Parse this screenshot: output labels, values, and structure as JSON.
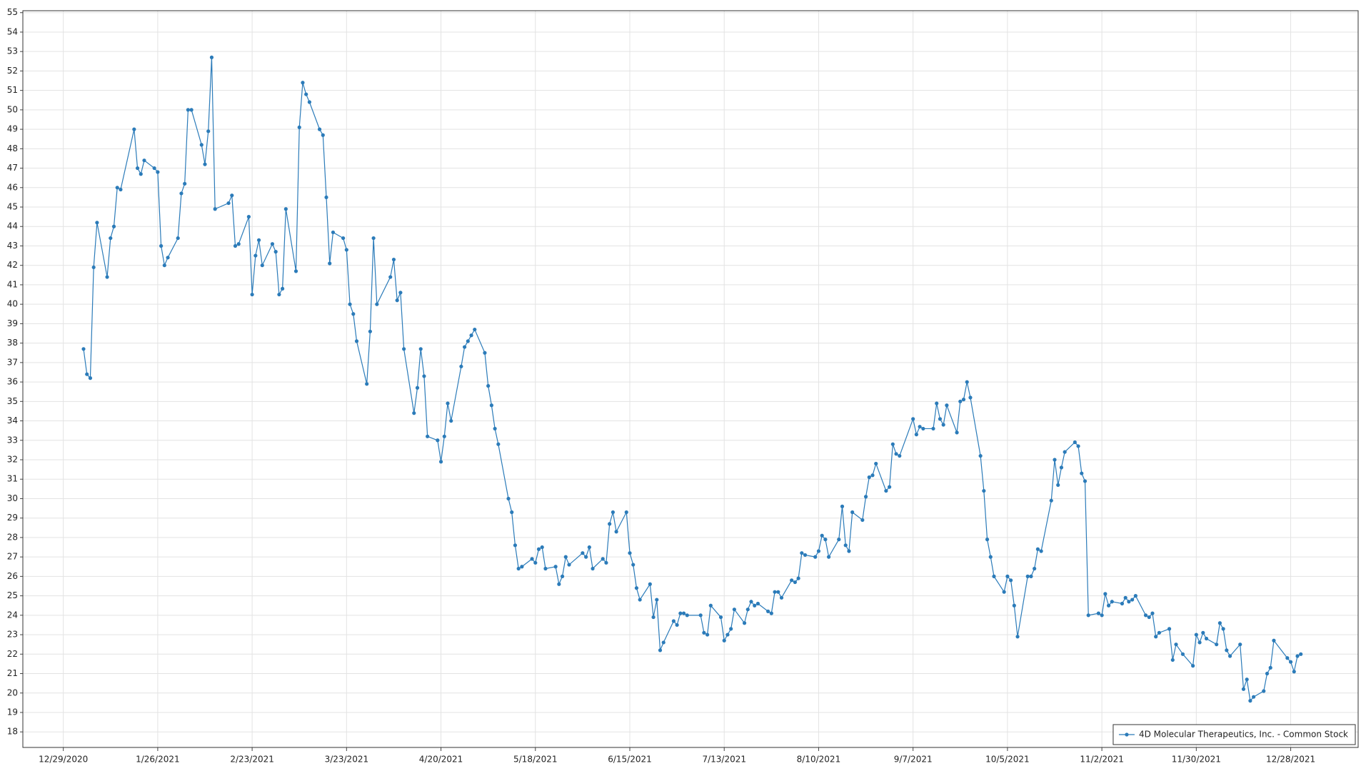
{
  "chart_data": {
    "type": "line",
    "x": [
      "1/4/2021",
      "1/5/2021",
      "1/6/2021",
      "1/7/2021",
      "1/8/2021",
      "1/11/2021",
      "1/12/2021",
      "1/13/2021",
      "1/14/2021",
      "1/15/2021",
      "1/19/2021",
      "1/20/2021",
      "1/21/2021",
      "1/22/2021",
      "1/25/2021",
      "1/26/2021",
      "1/27/2021",
      "1/28/2021",
      "1/29/2021",
      "2/1/2021",
      "2/2/2021",
      "2/3/2021",
      "2/4/2021",
      "2/5/2021",
      "2/8/2021",
      "2/9/2021",
      "2/10/2021",
      "2/11/2021",
      "2/12/2021",
      "2/16/2021",
      "2/17/2021",
      "2/18/2021",
      "2/19/2021",
      "2/22/2021",
      "2/23/2021",
      "2/24/2021",
      "2/25/2021",
      "2/26/2021",
      "3/1/2021",
      "3/2/2021",
      "3/3/2021",
      "3/4/2021",
      "3/5/2021",
      "3/8/2021",
      "3/9/2021",
      "3/10/2021",
      "3/11/2021",
      "3/12/2021",
      "3/15/2021",
      "3/16/2021",
      "3/17/2021",
      "3/18/2021",
      "3/19/2021",
      "3/22/2021",
      "3/23/2021",
      "3/24/2021",
      "3/25/2021",
      "3/26/2021",
      "3/29/2021",
      "3/30/2021",
      "3/31/2021",
      "4/1/2021",
      "4/5/2021",
      "4/6/2021",
      "4/7/2021",
      "4/8/2021",
      "4/9/2021",
      "4/12/2021",
      "4/13/2021",
      "4/14/2021",
      "4/15/2021",
      "4/16/2021",
      "4/19/2021",
      "4/20/2021",
      "4/21/2021",
      "4/22/2021",
      "4/23/2021",
      "4/26/2021",
      "4/27/2021",
      "4/28/2021",
      "4/29/2021",
      "4/30/2021",
      "5/3/2021",
      "5/4/2021",
      "5/5/2021",
      "5/6/2021",
      "5/7/2021",
      "5/10/2021",
      "5/11/2021",
      "5/12/2021",
      "5/13/2021",
      "5/14/2021",
      "5/17/2021",
      "5/18/2021",
      "5/19/2021",
      "5/20/2021",
      "5/21/2021",
      "5/24/2021",
      "5/25/2021",
      "5/26/2021",
      "5/27/2021",
      "5/28/2021",
      "6/1/2021",
      "6/2/2021",
      "6/3/2021",
      "6/4/2021",
      "6/7/2021",
      "6/8/2021",
      "6/9/2021",
      "6/10/2021",
      "6/11/2021",
      "6/14/2021",
      "6/15/2021",
      "6/16/2021",
      "6/17/2021",
      "6/18/2021",
      "6/21/2021",
      "6/22/2021",
      "6/23/2021",
      "6/24/2021",
      "6/25/2021",
      "6/28/2021",
      "6/29/2021",
      "6/30/2021",
      "7/1/2021",
      "7/2/2021",
      "7/6/2021",
      "7/7/2021",
      "7/8/2021",
      "7/9/2021",
      "7/12/2021",
      "7/13/2021",
      "7/14/2021",
      "7/15/2021",
      "7/16/2021",
      "7/19/2021",
      "7/20/2021",
      "7/21/2021",
      "7/22/2021",
      "7/23/2021",
      "7/26/2021",
      "7/27/2021",
      "7/28/2021",
      "7/29/2021",
      "7/30/2021",
      "8/2/2021",
      "8/3/2021",
      "8/4/2021",
      "8/5/2021",
      "8/6/2021",
      "8/9/2021",
      "8/10/2021",
      "8/11/2021",
      "8/12/2021",
      "8/13/2021",
      "8/16/2021",
      "8/17/2021",
      "8/18/2021",
      "8/19/2021",
      "8/20/2021",
      "8/23/2021",
      "8/24/2021",
      "8/25/2021",
      "8/26/2021",
      "8/27/2021",
      "8/30/2021",
      "8/31/2021",
      "9/1/2021",
      "9/2/2021",
      "9/3/2021",
      "9/7/2021",
      "9/8/2021",
      "9/9/2021",
      "9/10/2021",
      "9/13/2021",
      "9/14/2021",
      "9/15/2021",
      "9/16/2021",
      "9/17/2021",
      "9/20/2021",
      "9/21/2021",
      "9/22/2021",
      "9/23/2021",
      "9/24/2021",
      "9/27/2021",
      "9/28/2021",
      "9/29/2021",
      "9/30/2021",
      "10/1/2021",
      "10/4/2021",
      "10/5/2021",
      "10/6/2021",
      "10/7/2021",
      "10/8/2021",
      "10/11/2021",
      "10/12/2021",
      "10/13/2021",
      "10/14/2021",
      "10/15/2021",
      "10/18/2021",
      "10/19/2021",
      "10/20/2021",
      "10/21/2021",
      "10/22/2021",
      "10/25/2021",
      "10/26/2021",
      "10/27/2021",
      "10/28/2021",
      "10/29/2021",
      "11/1/2021",
      "11/2/2021",
      "11/3/2021",
      "11/4/2021",
      "11/5/2021",
      "11/8/2021",
      "11/9/2021",
      "11/10/2021",
      "11/11/2021",
      "11/12/2021",
      "11/15/2021",
      "11/16/2021",
      "11/17/2021",
      "11/18/2021",
      "11/19/2021",
      "11/22/2021",
      "11/23/2021",
      "11/24/2021",
      "11/26/2021",
      "11/29/2021",
      "11/30/2021",
      "12/1/2021",
      "12/2/2021",
      "12/3/2021",
      "12/6/2021",
      "12/7/2021",
      "12/8/2021",
      "12/9/2021",
      "12/10/2021",
      "12/13/2021",
      "12/14/2021",
      "12/15/2021",
      "12/16/2021",
      "12/17/2021",
      "12/20/2021",
      "12/21/2021",
      "12/22/2021",
      "12/23/2021",
      "12/27/2021",
      "12/28/2021",
      "12/29/2021",
      "12/30/2021",
      "12/31/2021"
    ],
    "series": [
      {
        "name": "4D Molecular Therapeutics, Inc. - Common Stock",
        "color": "#2b7bb9",
        "values": [
          37.7,
          36.4,
          36.2,
          41.9,
          44.2,
          41.4,
          43.4,
          44.0,
          46.0,
          45.9,
          49.0,
          47.0,
          46.7,
          47.4,
          47.0,
          46.8,
          43.0,
          42.0,
          42.4,
          43.4,
          45.7,
          46.2,
          50.0,
          50.0,
          48.2,
          47.2,
          48.9,
          52.7,
          44.9,
          45.2,
          45.6,
          43.0,
          43.1,
          44.5,
          40.5,
          42.5,
          43.3,
          42.0,
          43.1,
          42.7,
          40.5,
          40.8,
          44.9,
          41.7,
          49.1,
          51.4,
          50.8,
          50.4,
          49.0,
          48.7,
          45.5,
          42.1,
          43.7,
          43.4,
          42.8,
          40.0,
          39.5,
          38.1,
          35.9,
          38.6,
          43.4,
          40.0,
          41.4,
          42.3,
          40.2,
          40.6,
          37.7,
          34.4,
          35.7,
          37.7,
          36.3,
          33.2,
          33.0,
          31.9,
          33.2,
          34.9,
          34.0,
          36.8,
          37.8,
          38.1,
          38.4,
          38.7,
          37.5,
          35.8,
          34.8,
          33.6,
          32.8,
          30.0,
          29.3,
          27.6,
          26.4,
          26.5,
          26.9,
          26.7,
          27.4,
          27.5,
          26.4,
          26.5,
          25.6,
          26.0,
          27.0,
          26.6,
          27.2,
          27.0,
          27.5,
          26.4,
          26.9,
          26.7,
          28.7,
          29.3,
          28.3,
          29.3,
          27.2,
          26.6,
          25.4,
          24.8,
          25.6,
          23.9,
          24.8,
          22.2,
          22.6,
          23.7,
          23.5,
          24.1,
          24.1,
          24.0,
          24.0,
          23.1,
          23.0,
          24.5,
          23.9,
          22.7,
          23.0,
          23.3,
          24.3,
          23.6,
          24.3,
          24.7,
          24.5,
          24.6,
          24.2,
          24.1,
          25.2,
          25.2,
          24.9,
          25.8,
          25.7,
          25.9,
          27.2,
          27.1,
          27.0,
          27.3,
          28.1,
          27.9,
          27.0,
          27.9,
          29.6,
          27.6,
          27.3,
          29.3,
          28.9,
          30.1,
          31.1,
          31.2,
          31.8,
          30.4,
          30.6,
          32.8,
          32.3,
          32.2,
          34.1,
          33.3,
          33.7,
          33.6,
          33.6,
          34.9,
          34.1,
          33.8,
          34.8,
          33.4,
          35.0,
          35.1,
          36.0,
          35.2,
          32.2,
          30.4,
          27.9,
          27.0,
          26.0,
          25.2,
          26.0,
          25.8,
          24.5,
          22.9,
          26.0,
          26.0,
          26.4,
          27.4,
          27.3,
          29.9,
          32.0,
          30.7,
          31.6,
          32.4,
          32.9,
          32.7,
          31.3,
          30.9,
          24.0,
          24.1,
          24.0,
          25.1,
          24.5,
          24.7,
          24.6,
          24.9,
          24.7,
          24.8,
          25.0,
          24.0,
          23.9,
          24.1,
          22.9,
          23.1,
          23.3,
          21.7,
          22.5,
          22.0,
          21.4,
          23.0,
          22.6,
          23.1,
          22.8,
          22.5,
          23.6,
          23.3,
          22.2,
          21.9,
          22.5,
          20.2,
          20.7,
          19.6,
          19.8,
          20.1,
          21.0,
          21.3,
          22.7,
          21.8,
          21.6,
          21.1,
          21.9,
          22.0
        ]
      }
    ],
    "xlim": [
      "12/17/2020",
      "1/17/2022"
    ],
    "xticks": [
      "12/29/2020",
      "1/26/2021",
      "2/23/2021",
      "3/23/2021",
      "4/20/2021",
      "5/18/2021",
      "6/15/2021",
      "7/13/2021",
      "8/10/2021",
      "9/7/2021",
      "10/5/2021",
      "11/2/2021",
      "11/30/2021",
      "12/28/2021"
    ],
    "ylim": [
      17.2,
      55.1
    ],
    "yticks": [
      18,
      19,
      20,
      21,
      22,
      23,
      24,
      25,
      26,
      27,
      28,
      29,
      30,
      31,
      32,
      33,
      34,
      35,
      36,
      37,
      38,
      39,
      40,
      41,
      42,
      43,
      44,
      45,
      46,
      47,
      48,
      49,
      50,
      51,
      52,
      53,
      54,
      55
    ],
    "grid": true,
    "legend": "lower right"
  }
}
